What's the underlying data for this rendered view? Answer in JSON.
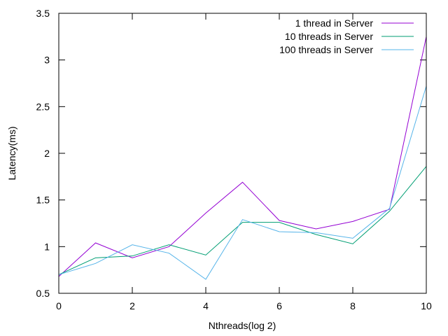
{
  "chart_data": {
    "type": "line",
    "title": "",
    "xlabel": "Nthreads(log 2)",
    "ylabel": "Latency(ms)",
    "xlim": [
      0,
      10
    ],
    "ylim": [
      0.5,
      3.5
    ],
    "x_ticks": [
      0,
      2,
      4,
      6,
      8,
      10
    ],
    "y_ticks": [
      0.5,
      1,
      1.5,
      2,
      2.5,
      3,
      3.5
    ],
    "x_tick_labels": [
      "0",
      "2",
      "4",
      "6",
      "8",
      "10"
    ],
    "y_tick_labels": [
      "0.5",
      "1",
      "1.5",
      "2",
      "2.5",
      "3",
      "3.5"
    ],
    "grid": false,
    "legend_position": "top-right",
    "x": [
      0,
      1,
      2,
      3,
      4,
      5,
      6,
      7,
      8,
      9,
      10
    ],
    "series": [
      {
        "name": "1 thread in Server",
        "color": "#9400d3",
        "values": [
          0.68,
          1.04,
          0.88,
          1.0,
          1.36,
          1.69,
          1.28,
          1.19,
          1.27,
          1.4,
          3.25
        ]
      },
      {
        "name": "10 threads in Server",
        "color": "#009e73",
        "values": [
          0.7,
          0.88,
          0.9,
          1.02,
          0.91,
          1.26,
          1.26,
          1.13,
          1.03,
          1.38,
          1.86
        ]
      },
      {
        "name": "100 threads in Server",
        "color": "#56b4e9",
        "values": [
          0.7,
          0.82,
          1.02,
          0.93,
          0.65,
          1.29,
          1.16,
          1.15,
          1.09,
          1.41,
          2.72
        ]
      }
    ]
  }
}
